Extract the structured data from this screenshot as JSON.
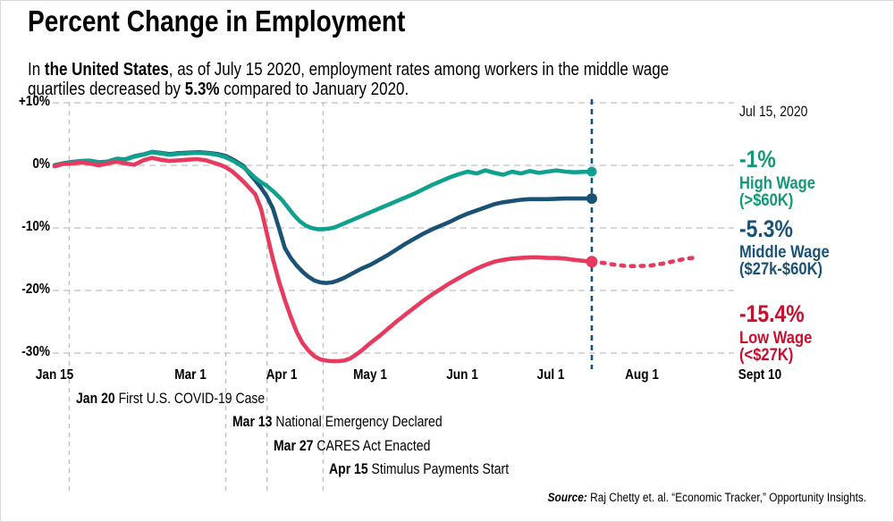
{
  "header": {
    "title": "Percent Change in Employment",
    "subtitle": {
      "s1": "In ",
      "b1": "the United States",
      "s2": ", as of July 15 2020, employment rates among workers in the middle wage quartiles decreased by ",
      "b2": "5.3%",
      "s3": " compared to January 2020."
    }
  },
  "chart_data": {
    "type": "line",
    "title": "Percent Change in Employment",
    "x_unit": "days since Jan 15, 2020",
    "y_unit": "percent change vs January 2020",
    "grid": "dashed horizontal",
    "x_axis": {
      "ticks": [
        {
          "label": "Jan 15",
          "day": 0
        },
        {
          "label": "Mar 1",
          "day": 46
        },
        {
          "label": "Apr 1",
          "day": 77
        },
        {
          "label": "May 1",
          "day": 107
        },
        {
          "label": "Jun 1",
          "day": 138
        },
        {
          "label": "Jul 1",
          "day": 168
        },
        {
          "label": "Aug 1",
          "day": 199
        },
        {
          "label": "Sept 10",
          "day": 239
        }
      ]
    },
    "y_axis": {
      "ylim": [
        -33,
        11
      ],
      "ticks": [
        {
          "label": "+10%",
          "value": 10
        },
        {
          "label": "0%",
          "value": 0
        },
        {
          "label": "-10%",
          "value": -10
        },
        {
          "label": "-20%",
          "value": -20
        },
        {
          "label": "-30%",
          "value": -30
        }
      ]
    },
    "grid_color": "#cccccc",
    "event_line_color": "#bfbfbf",
    "marker": {
      "day": 182,
      "label": "Jul 15, 2020",
      "color": "#1A5276"
    },
    "series": [
      {
        "name": "High Wage (>$60K)",
        "color": "#0FA18E",
        "end_label": "-1%",
        "points": [
          [
            0,
            0
          ],
          [
            3,
            0.3
          ],
          [
            6,
            0.5
          ],
          [
            9,
            0.65
          ],
          [
            12,
            0.7
          ],
          [
            15,
            0.45
          ],
          [
            18,
            0.55
          ],
          [
            21,
            1.0
          ],
          [
            24,
            0.9
          ],
          [
            27,
            1.4
          ],
          [
            30,
            1.7
          ],
          [
            33,
            2.1
          ],
          [
            36,
            1.9
          ],
          [
            39,
            1.7
          ],
          [
            42,
            1.85
          ],
          [
            46,
            1.95
          ],
          [
            49,
            2.0
          ],
          [
            52,
            1.9
          ],
          [
            55,
            1.7
          ],
          [
            58,
            1.3
          ],
          [
            61,
            0.6
          ],
          [
            64,
            -0.3
          ],
          [
            66,
            -1.1
          ],
          [
            68,
            -2.0
          ],
          [
            70,
            -2.7
          ],
          [
            72,
            -3.3
          ],
          [
            74,
            -4.1
          ],
          [
            77,
            -5.5
          ],
          [
            79,
            -6.7
          ],
          [
            81,
            -7.9
          ],
          [
            83,
            -8.9
          ],
          [
            85,
            -9.6
          ],
          [
            87,
            -10.0
          ],
          [
            89,
            -10.2
          ],
          [
            91,
            -10.2
          ],
          [
            93,
            -10.1
          ],
          [
            95,
            -9.9
          ],
          [
            97,
            -9.5
          ],
          [
            100,
            -8.9
          ],
          [
            103,
            -8.3
          ],
          [
            107,
            -7.5
          ],
          [
            110,
            -6.9
          ],
          [
            113,
            -6.3
          ],
          [
            116,
            -5.7
          ],
          [
            119,
            -5.1
          ],
          [
            122,
            -4.5
          ],
          [
            125,
            -3.8
          ],
          [
            128,
            -3.1
          ],
          [
            131,
            -2.5
          ],
          [
            134,
            -1.9
          ],
          [
            137,
            -1.4
          ],
          [
            140,
            -1.0
          ],
          [
            143,
            -1.3
          ],
          [
            146,
            -0.8
          ],
          [
            149,
            -1.2
          ],
          [
            152,
            -1.5
          ],
          [
            155,
            -1.0
          ],
          [
            158,
            -1.3
          ],
          [
            161,
            -0.9
          ],
          [
            164,
            -1.2
          ],
          [
            167,
            -1.0
          ],
          [
            170,
            -0.8
          ],
          [
            173,
            -1.0
          ],
          [
            176,
            -1.1
          ],
          [
            179,
            -1.05
          ],
          [
            182,
            -1.0
          ]
        ]
      },
      {
        "name": "Middle Wage ($27k-$60K)",
        "color": "#1A5276",
        "end_label": "-5.3%",
        "points": [
          [
            0,
            0.05
          ],
          [
            3,
            0.35
          ],
          [
            6,
            0.55
          ],
          [
            9,
            0.7
          ],
          [
            12,
            0.75
          ],
          [
            15,
            0.5
          ],
          [
            18,
            0.6
          ],
          [
            21,
            1.05
          ],
          [
            24,
            0.95
          ],
          [
            27,
            1.45
          ],
          [
            30,
            1.75
          ],
          [
            33,
            2.15
          ],
          [
            36,
            2.0
          ],
          [
            39,
            1.8
          ],
          [
            42,
            1.95
          ],
          [
            46,
            2.05
          ],
          [
            49,
            2.1
          ],
          [
            52,
            2.0
          ],
          [
            55,
            1.85
          ],
          [
            58,
            1.5
          ],
          [
            61,
            0.8
          ],
          [
            64,
            -0.1
          ],
          [
            66,
            -1.3
          ],
          [
            68,
            -2.4
          ],
          [
            70,
            -3.6
          ],
          [
            72,
            -5.0
          ],
          [
            74,
            -6.9
          ],
          [
            76,
            -10.0
          ],
          [
            78,
            -13.2
          ],
          [
            80,
            -14.8
          ],
          [
            82,
            -16.0
          ],
          [
            84,
            -17.0
          ],
          [
            86,
            -17.8
          ],
          [
            88,
            -18.4
          ],
          [
            90,
            -18.7
          ],
          [
            92,
            -18.8
          ],
          [
            94,
            -18.7
          ],
          [
            96,
            -18.4
          ],
          [
            98,
            -18.0
          ],
          [
            100,
            -17.5
          ],
          [
            102,
            -17.0
          ],
          [
            104,
            -16.5
          ],
          [
            107,
            -15.9
          ],
          [
            110,
            -15.1
          ],
          [
            113,
            -14.3
          ],
          [
            116,
            -13.4
          ],
          [
            119,
            -12.5
          ],
          [
            122,
            -11.7
          ],
          [
            125,
            -10.9
          ],
          [
            128,
            -10.2
          ],
          [
            131,
            -9.6
          ],
          [
            134,
            -9.0
          ],
          [
            137,
            -8.3
          ],
          [
            140,
            -7.7
          ],
          [
            143,
            -7.2
          ],
          [
            146,
            -6.7
          ],
          [
            149,
            -6.2
          ],
          [
            152,
            -5.9
          ],
          [
            155,
            -5.7
          ],
          [
            158,
            -5.5
          ],
          [
            161,
            -5.4
          ],
          [
            164,
            -5.4
          ],
          [
            167,
            -5.4
          ],
          [
            170,
            -5.35
          ],
          [
            173,
            -5.3
          ],
          [
            176,
            -5.3
          ],
          [
            179,
            -5.3
          ],
          [
            182,
            -5.3
          ]
        ]
      },
      {
        "name": "Low Wage (<$27K)",
        "color": "#E83A5F",
        "end_label": "-15.4%",
        "points": [
          [
            0,
            -0.15
          ],
          [
            3,
            0.25
          ],
          [
            6,
            0.3
          ],
          [
            9,
            0.45
          ],
          [
            12,
            0.3
          ],
          [
            15,
            0.0
          ],
          [
            18,
            0.3
          ],
          [
            21,
            0.6
          ],
          [
            24,
            0.3
          ],
          [
            27,
            0.1
          ],
          [
            30,
            0.8
          ],
          [
            33,
            1.2
          ],
          [
            36,
            0.9
          ],
          [
            39,
            0.7
          ],
          [
            42,
            0.8
          ],
          [
            45,
            0.9
          ],
          [
            48,
            1.0
          ],
          [
            51,
            0.85
          ],
          [
            54,
            0.4
          ],
          [
            56,
            0.1
          ],
          [
            58,
            -0.3
          ],
          [
            60,
            -0.9
          ],
          [
            62,
            -1.7
          ],
          [
            64,
            -2.6
          ],
          [
            66,
            -3.6
          ],
          [
            68,
            -4.6
          ],
          [
            70,
            -7.0
          ],
          [
            72,
            -11.0
          ],
          [
            74,
            -15.0
          ],
          [
            76,
            -18.5
          ],
          [
            78,
            -21.5
          ],
          [
            80,
            -24.2
          ],
          [
            82,
            -26.6
          ],
          [
            84,
            -28.4
          ],
          [
            86,
            -29.6
          ],
          [
            88,
            -30.5
          ],
          [
            90,
            -31.0
          ],
          [
            92,
            -31.2
          ],
          [
            94,
            -31.3
          ],
          [
            96,
            -31.3
          ],
          [
            98,
            -31.2
          ],
          [
            100,
            -30.9
          ],
          [
            102,
            -30.3
          ],
          [
            104,
            -29.6
          ],
          [
            107,
            -28.4
          ],
          [
            110,
            -27.3
          ],
          [
            113,
            -26.1
          ],
          [
            116,
            -24.9
          ],
          [
            119,
            -23.8
          ],
          [
            122,
            -22.7
          ],
          [
            125,
            -21.6
          ],
          [
            128,
            -20.6
          ],
          [
            131,
            -19.7
          ],
          [
            134,
            -18.8
          ],
          [
            137,
            -18.0
          ],
          [
            140,
            -17.2
          ],
          [
            143,
            -16.5
          ],
          [
            146,
            -15.9
          ],
          [
            149,
            -15.4
          ],
          [
            152,
            -15.1
          ],
          [
            155,
            -14.9
          ],
          [
            158,
            -14.8
          ],
          [
            161,
            -14.7
          ],
          [
            164,
            -14.7
          ],
          [
            167,
            -14.8
          ],
          [
            170,
            -14.8
          ],
          [
            173,
            -14.9
          ],
          [
            176,
            -15.1
          ],
          [
            179,
            -15.25
          ],
          [
            182,
            -15.4
          ]
        ],
        "forecast_points": [
          [
            182,
            -15.4
          ],
          [
            186,
            -15.6
          ],
          [
            190,
            -15.9
          ],
          [
            194,
            -16.1
          ],
          [
            198,
            -16.1
          ],
          [
            202,
            -16.0
          ],
          [
            206,
            -15.7
          ],
          [
            210,
            -15.3
          ],
          [
            214,
            -14.9
          ],
          [
            218,
            -14.7
          ]
        ]
      }
    ],
    "events": [
      {
        "date_label": "Jan 20",
        "text": "First U.S. COVID-19 Case",
        "day": 5
      },
      {
        "date_label": "Mar 13",
        "text": "National Emergency Declared",
        "day": 58
      },
      {
        "date_label": "Mar 27",
        "text": "CARES Act Enacted",
        "day": 72
      },
      {
        "date_label": "Apr 15",
        "text": "Stimulus Payments Start",
        "day": 91
      }
    ],
    "callouts": {
      "date": "Jul 15, 2020",
      "items": [
        {
          "value": "-1%",
          "label": "High Wage (>$60K)",
          "color": "#119878"
        },
        {
          "value": "-5.3%",
          "label": "Middle Wage\n($27k-$60K)",
          "color": "#1A5276"
        },
        {
          "value": "-15.4%",
          "label": "Low Wage (<$27K)",
          "color": "#C8102E"
        }
      ]
    }
  },
  "source": {
    "label": "Source:",
    "text": " Raj Chetty et. al. “Economic Tracker,” Opportunity Insights."
  }
}
